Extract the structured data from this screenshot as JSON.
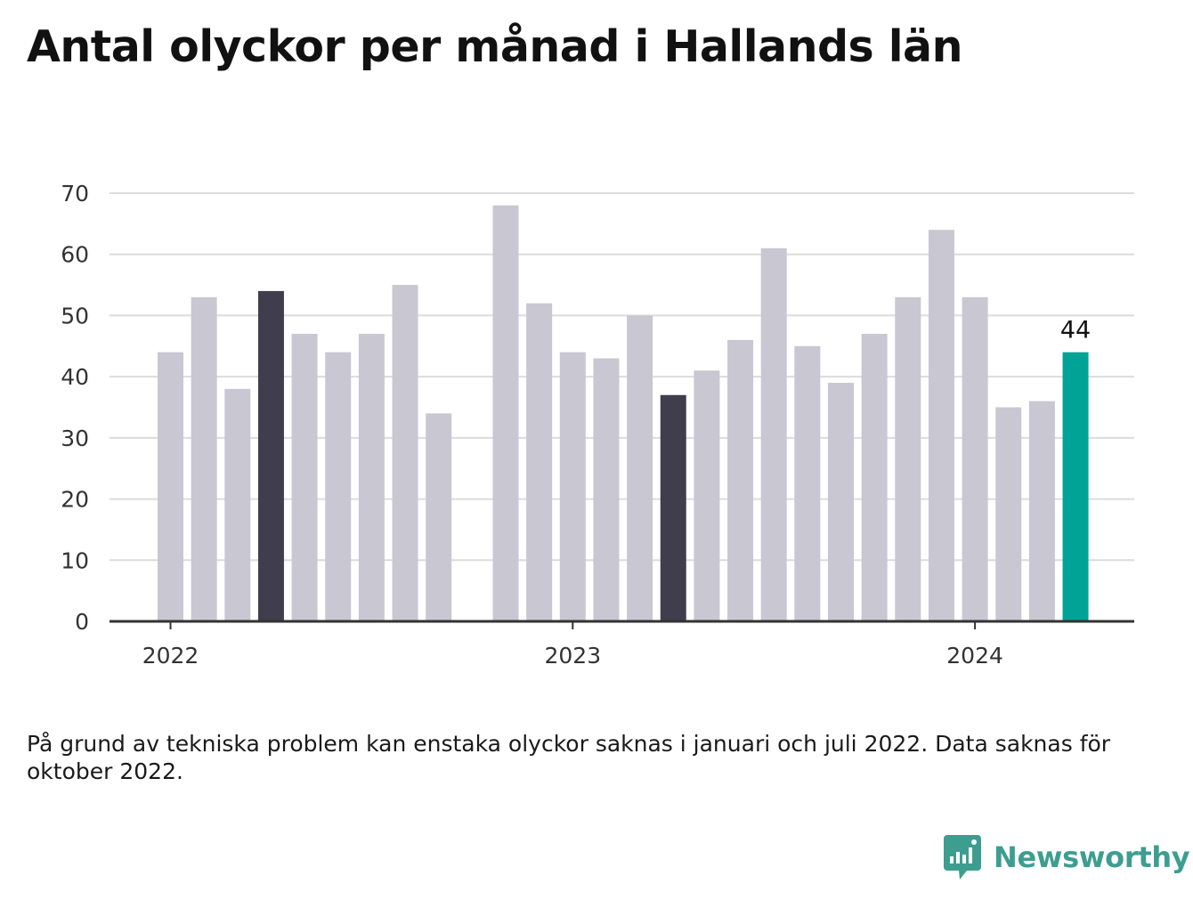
{
  "title": "Antal olyckor per månad i Hallands län",
  "note": "På grund av tekniska problem kan enstaka olyckor saknas i januari och juli 2022. Data saknas för oktober 2022.",
  "brand": {
    "name": "Newsworthy",
    "icon": "bar-chart-speech-bubble-icon",
    "color": "#3d9e90"
  },
  "chart_data": {
    "type": "bar",
    "x": [
      "2022-01",
      "2022-02",
      "2022-03",
      "2022-04",
      "2022-05",
      "2022-06",
      "2022-07",
      "2022-08",
      "2022-09",
      "2022-10",
      "2022-11",
      "2022-12",
      "2023-01",
      "2023-02",
      "2023-03",
      "2023-04",
      "2023-05",
      "2023-06",
      "2023-07",
      "2023-08",
      "2023-09",
      "2023-10",
      "2023-11",
      "2023-12",
      "2024-01",
      "2024-02",
      "2024-03",
      "2024-04"
    ],
    "values": [
      44,
      53,
      38,
      54,
      47,
      44,
      47,
      55,
      34,
      null,
      68,
      52,
      44,
      43,
      50,
      37,
      41,
      46,
      61,
      45,
      39,
      47,
      53,
      64,
      53,
      35,
      36,
      44
    ],
    "highlight": {
      "dark": [
        "2022-04",
        "2023-04"
      ],
      "latest": "2024-04"
    },
    "data_label": {
      "x": "2024-04",
      "text": "44"
    },
    "xticks": [
      {
        "x": "2022-01",
        "label": "2022"
      },
      {
        "x": "2023-01",
        "label": "2023"
      },
      {
        "x": "2024-01",
        "label": "2024"
      }
    ],
    "yticks": [
      0,
      10,
      20,
      30,
      40,
      50,
      60,
      70
    ],
    "ylim": [
      0,
      70
    ],
    "grid": true,
    "colors": {
      "default": "#c9c7d2",
      "dark": "#403e4d",
      "latest": "#00a396",
      "grid": "#dcdcdc",
      "axis": "#333333"
    }
  }
}
